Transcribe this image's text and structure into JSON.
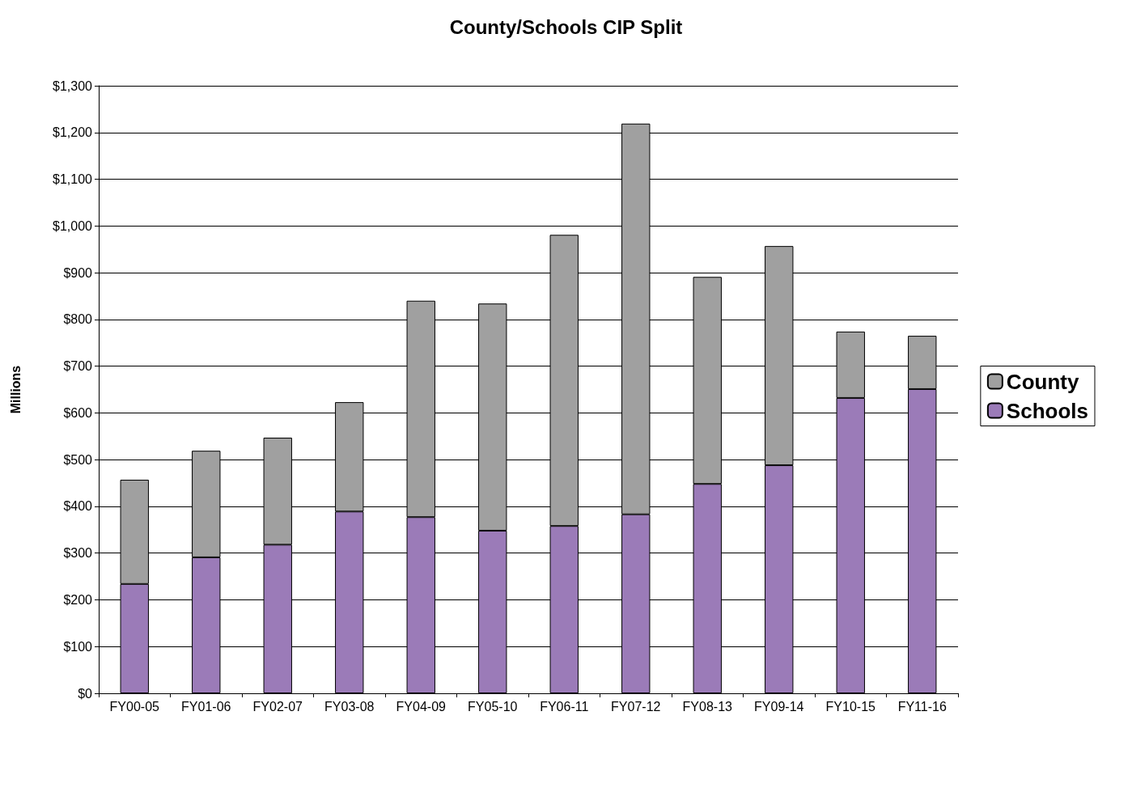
{
  "chart_data": {
    "type": "bar",
    "title": "County/Schools CIP Split",
    "ylabel": "Millions",
    "stacked": true,
    "categories": [
      "FY00-05",
      "FY01-06",
      "FY02-07",
      "FY03-08",
      "FY04-09",
      "FY05-10",
      "FY06-11",
      "FY07-12",
      "FY08-13",
      "FY09-14",
      "FY10-15",
      "FY11-16"
    ],
    "series": [
      {
        "name": "Schools",
        "color": "#9b7bb8",
        "values": [
          234,
          291,
          318,
          389,
          377,
          348,
          358,
          383,
          448,
          488,
          632,
          651
        ]
      },
      {
        "name": "County",
        "color": "#a0a0a0",
        "values": [
          223,
          228,
          229,
          234,
          463,
          486,
          623,
          836,
          443,
          469,
          142,
          114
        ]
      }
    ],
    "ylim": [
      0,
      1300
    ],
    "yticks": [
      {
        "value": 0,
        "label": "$0"
      },
      {
        "value": 100,
        "label": "$100"
      },
      {
        "value": 200,
        "label": "$200"
      },
      {
        "value": 300,
        "label": "$300"
      },
      {
        "value": 400,
        "label": "$400"
      },
      {
        "value": 500,
        "label": "$500"
      },
      {
        "value": 600,
        "label": "$600"
      },
      {
        "value": 700,
        "label": "$700"
      },
      {
        "value": 800,
        "label": "$800"
      },
      {
        "value": 900,
        "label": "$900"
      },
      {
        "value": 1000,
        "label": "$1,000"
      },
      {
        "value": 1100,
        "label": "$1,100"
      },
      {
        "value": 1200,
        "label": "$1,200"
      },
      {
        "value": 1300,
        "label": "$1,300"
      }
    ],
    "grid": "y",
    "legend": "right"
  }
}
